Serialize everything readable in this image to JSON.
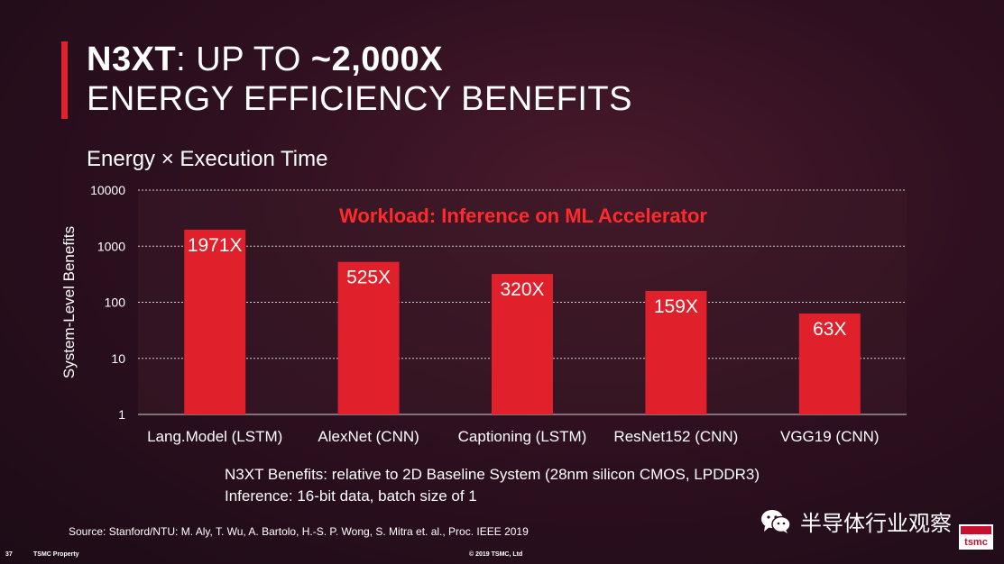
{
  "header": {
    "title_bold_1": "N3XT",
    "title_regular": ": UP TO ",
    "title_bold_2": "~2,000X",
    "title_line2": "ENERGY EFFICIENCY BENEFITS"
  },
  "colors": {
    "accent": "#e0202a",
    "bar": "#e0202a",
    "annotation": "#ff2a2a",
    "plot_bg": "#3a1a26",
    "grid": "#cfcfcf"
  },
  "chart_data": {
    "type": "bar",
    "title": "Energy × Execution Time",
    "ylabel": "System-Level Benefits",
    "xlabel": "",
    "yscale": "log",
    "ylim": [
      1,
      10000
    ],
    "yticks": [
      "10000",
      "1000",
      "100",
      "10",
      "1"
    ],
    "grid": true,
    "categories": [
      "Lang.Model (LSTM)",
      "AlexNet (CNN)",
      "Captioning (LSTM)",
      "ResNet152 (CNN)",
      "VGG19 (CNN)"
    ],
    "values": [
      1971,
      525,
      320,
      159,
      63
    ],
    "data_labels": [
      "1971X",
      "525X",
      "320X",
      "159X",
      "63X"
    ],
    "annotation": "Workload: Inference on ML Accelerator"
  },
  "notes": {
    "line1": "N3XT Benefits: relative to 2D Baseline System (28nm silicon CMOS, LPDDR3)",
    "line2": "Inference: 16-bit data, batch size of 1"
  },
  "source": "Source: Stanford/NTU: M. Aly, T. Wu, A. Bartolo, H.-S. P. Wong,  S. Mitra et. al., Proc. IEEE 2019",
  "footer": {
    "page_number": "37",
    "property": "TSMC Property",
    "copyright": "© 2019 TSMC, Ltd"
  },
  "watermark": {
    "text": "半导体行业观察",
    "icon": "wechat-icon"
  },
  "logo": {
    "text": "tsmc"
  }
}
